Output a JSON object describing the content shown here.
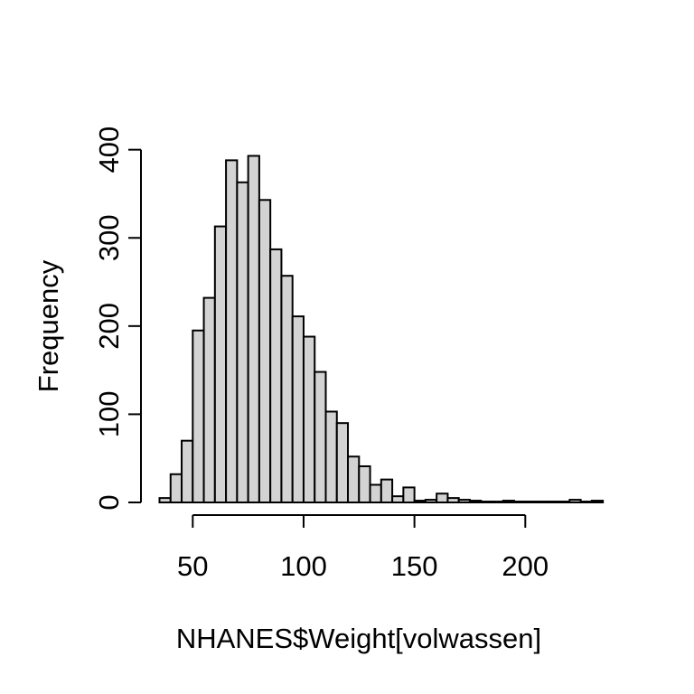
{
  "figure": {
    "background": "#ffffff",
    "bar_fill": "#d3d3d3",
    "bar_stroke": "#000000",
    "axis_color": "#000000",
    "text_color": "#000000"
  },
  "chart_data": {
    "type": "bar",
    "subtype": "histogram",
    "title": "",
    "xlabel": "NHANES$Weight[volwassen]",
    "ylabel": "Frequency",
    "bin_start": 35,
    "bin_width": 5,
    "bin_edges_note": "bins of width 5 from 35 to 235",
    "counts": [
      5,
      32,
      70,
      195,
      232,
      313,
      388,
      363,
      393,
      343,
      287,
      257,
      211,
      188,
      148,
      103,
      90,
      52,
      41,
      20,
      26,
      7,
      17,
      2,
      3,
      10,
      5,
      3,
      2,
      1,
      1,
      2,
      1,
      1,
      1,
      1,
      1,
      3,
      1,
      2
    ],
    "x_ticks": [
      50,
      100,
      150,
      200
    ],
    "y_ticks": [
      0,
      100,
      200,
      300,
      400
    ],
    "xlim": [
      35,
      235
    ],
    "ylim": [
      0,
      400
    ],
    "grid": false,
    "legend": null
  }
}
